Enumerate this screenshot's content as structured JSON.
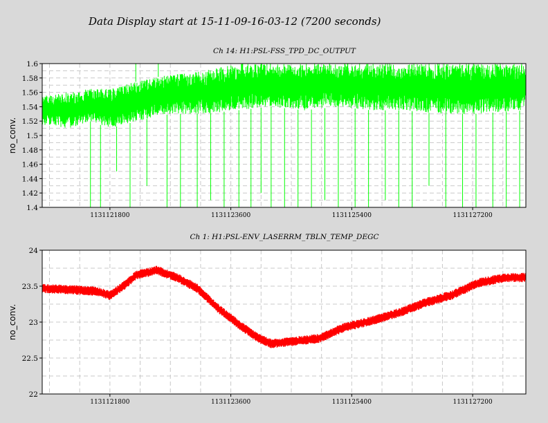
{
  "page_title": "Data Display start at 15-11-09-16-03-12 (7200 seconds)",
  "colors": {
    "background": "#d9d9d9",
    "plot_background": "#ffffff",
    "grid": "#c8c8c8",
    "series_1": "#00ff00",
    "series_2": "#ff0000"
  },
  "chart_data": [
    {
      "type": "line",
      "title": "Ch 14: H1:PSL-FSS_TPD_DC_OUTPUT",
      "xlabel": "",
      "ylabel": "no_conv.",
      "xlim": [
        1131120792,
        1131127992
      ],
      "ylim": [
        1.4,
        1.6
      ],
      "x_ticks": [
        1131121800,
        1131123600,
        1131125400,
        1131127200
      ],
      "x_tick_labels": [
        "1131121800",
        "1131123600",
        "1131125400",
        "1131127200"
      ],
      "y_ticks": [
        1.4,
        1.42,
        1.44,
        1.46,
        1.48,
        1.5,
        1.52,
        1.54,
        1.56,
        1.58,
        1.6
      ],
      "y_tick_labels": [
        "1.4",
        "1.42",
        "1.44",
        "1.46",
        "1.48",
        "1.5",
        "1.52",
        "1.54",
        "1.56",
        "1.58",
        "1.6"
      ],
      "grid": true,
      "legend": "none",
      "series_color": "#00ff00",
      "band": {
        "x": [
          1131120792,
          1131121200,
          1131121500,
          1131121800,
          1131122200,
          1131122700,
          1131123200,
          1131123700,
          1131124200,
          1131124700,
          1131125200,
          1131125700,
          1131126200,
          1131126700,
          1131127200,
          1131127992
        ],
        "low": [
          1.515,
          1.51,
          1.52,
          1.51,
          1.52,
          1.53,
          1.53,
          1.535,
          1.54,
          1.535,
          1.54,
          1.535,
          1.535,
          1.53,
          1.53,
          1.535
        ],
        "high": [
          1.555,
          1.56,
          1.565,
          1.565,
          1.575,
          1.585,
          1.59,
          1.6,
          1.6,
          1.6,
          1.6,
          1.6,
          1.6,
          1.6,
          1.6,
          1.6
        ]
      },
      "dips": [
        {
          "x": 1131121510,
          "min": 1.4
        },
        {
          "x": 1131121660,
          "min": 1.4
        },
        {
          "x": 1131121900,
          "min": 1.45
        },
        {
          "x": 1131122100,
          "min": 1.4
        },
        {
          "x": 1131122350,
          "min": 1.43
        },
        {
          "x": 1131122650,
          "min": 1.4
        },
        {
          "x": 1131122850,
          "min": 1.4
        },
        {
          "x": 1131123100,
          "min": 1.4
        },
        {
          "x": 1131123300,
          "min": 1.41
        },
        {
          "x": 1131123500,
          "min": 1.4
        },
        {
          "x": 1131123720,
          "min": 1.4
        },
        {
          "x": 1131123900,
          "min": 1.4
        },
        {
          "x": 1131124050,
          "min": 1.42
        },
        {
          "x": 1131124200,
          "min": 1.4
        },
        {
          "x": 1131124400,
          "min": 1.4
        },
        {
          "x": 1131124600,
          "min": 1.4
        },
        {
          "x": 1131124800,
          "min": 1.4
        },
        {
          "x": 1131125000,
          "min": 1.41
        },
        {
          "x": 1131125200,
          "min": 1.4
        },
        {
          "x": 1131125450,
          "min": 1.4
        },
        {
          "x": 1131125650,
          "min": 1.4
        },
        {
          "x": 1131125900,
          "min": 1.41
        },
        {
          "x": 1131126100,
          "min": 1.4
        },
        {
          "x": 1131126300,
          "min": 1.4
        },
        {
          "x": 1131126550,
          "min": 1.43
        },
        {
          "x": 1131126800,
          "min": 1.4
        },
        {
          "x": 1131127050,
          "min": 1.4
        },
        {
          "x": 1131127250,
          "min": 1.4
        },
        {
          "x": 1131127500,
          "min": 1.4
        },
        {
          "x": 1131127700,
          "min": 1.4
        },
        {
          "x": 1131127900,
          "min": 1.4
        }
      ],
      "spikes": [
        {
          "x": 1131122185,
          "max": 1.6
        },
        {
          "x": 1131122520,
          "max": 1.6
        },
        {
          "x": 1131124200,
          "max": 1.6
        }
      ]
    },
    {
      "type": "line",
      "title": "Ch 1: H1:PSL-ENV_LASERRM_TBLN_TEMP_DEGC",
      "xlabel": "",
      "ylabel": "no_conv.",
      "xlim": [
        1131120792,
        1131127992
      ],
      "ylim": [
        22,
        24
      ],
      "x_ticks": [
        1131121800,
        1131123600,
        1131125400,
        1131127200
      ],
      "x_tick_labels": [
        "1131121800",
        "1131123600",
        "1131125400",
        "1131127200"
      ],
      "y_ticks": [
        22,
        22.5,
        23,
        23.5,
        24
      ],
      "y_tick_labels": [
        "22",
        "22.5",
        "23",
        "23.5",
        "24"
      ],
      "grid": true,
      "legend": "none",
      "series_color": "#ff0000",
      "x": [
        1131120792,
        1131121200,
        1131121600,
        1131121800,
        1131122000,
        1131122200,
        1131122500,
        1131122800,
        1131123100,
        1131123400,
        1131123700,
        1131124000,
        1131124200,
        1131124500,
        1131124900,
        1131125300,
        1131125700,
        1131126100,
        1131126500,
        1131126900,
        1131127300,
        1131127700,
        1131127992
      ],
      "values": [
        23.47,
        23.45,
        23.43,
        23.37,
        23.5,
        23.66,
        23.72,
        23.62,
        23.47,
        23.2,
        22.98,
        22.78,
        22.7,
        22.73,
        22.77,
        22.93,
        23.02,
        23.13,
        23.27,
        23.38,
        23.55,
        23.62,
        23.62
      ]
    }
  ]
}
